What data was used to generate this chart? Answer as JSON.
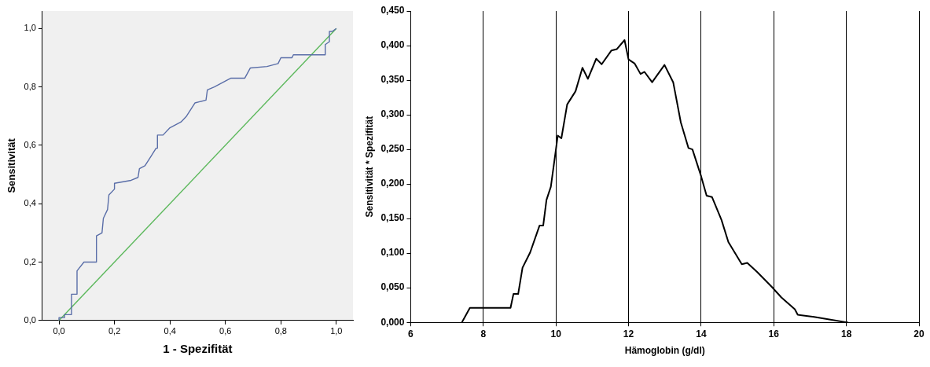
{
  "chart_data": [
    {
      "type": "line",
      "xlabel": "1 - Spezifität",
      "ylabel": "Sensitivität",
      "xlim": [
        -0.06,
        1.06
      ],
      "ylim": [
        0,
        1.06
      ],
      "xticks": [
        {
          "value": 0,
          "label": "0,0"
        },
        {
          "value": 0.2,
          "label": "0,2"
        },
        {
          "value": 0.4,
          "label": "0,4"
        },
        {
          "value": 0.6,
          "label": "0,6"
        },
        {
          "value": 0.8,
          "label": "0,8"
        },
        {
          "value": 1,
          "label": "1,0"
        }
      ],
      "yticks": [
        {
          "value": 0,
          "label": "0,0"
        },
        {
          "value": 0.2,
          "label": "0,2"
        },
        {
          "value": 0.4,
          "label": "0,4"
        },
        {
          "value": 0.6,
          "label": "0,6"
        },
        {
          "value": 0.8,
          "label": "0,8"
        },
        {
          "value": 1,
          "label": "1,0"
        }
      ],
      "grid": false,
      "legend": false,
      "marker": "none",
      "line_style": "solid",
      "series": [
        {
          "color": "#5a6ea8",
          "x": [
            0,
            0,
            0.02,
            0.02,
            0.045,
            0.045,
            0.065,
            0.065,
            0.09,
            0.135,
            0.135,
            0.155,
            0.16,
            0.175,
            0.18,
            0.2,
            0.2,
            0.26,
            0.285,
            0.29,
            0.31,
            0.33,
            0.35,
            0.355,
            0.355,
            0.375,
            0.4,
            0.44,
            0.46,
            0.49,
            0.53,
            0.535,
            0.56,
            0.62,
            0.67,
            0.69,
            0.75,
            0.79,
            0.8,
            0.84,
            0.845,
            0.96,
            0.96,
            0.975,
            0.975,
            0.985,
            1
          ],
          "values": [
            0,
            0.01,
            0.01,
            0.02,
            0.02,
            0.09,
            0.09,
            0.17,
            0.2,
            0.2,
            0.29,
            0.3,
            0.35,
            0.38,
            0.43,
            0.45,
            0.47,
            0.48,
            0.49,
            0.52,
            0.53,
            0.56,
            0.59,
            0.59,
            0.635,
            0.635,
            0.66,
            0.68,
            0.7,
            0.745,
            0.755,
            0.79,
            0.8,
            0.83,
            0.83,
            0.865,
            0.87,
            0.88,
            0.9,
            0.9,
            0.91,
            0.91,
            0.945,
            0.955,
            0.99,
            0.99,
            1
          ]
        },
        {
          "color": "#5cb85c",
          "x": [
            0,
            1
          ],
          "values": [
            0,
            1
          ]
        }
      ]
    },
    {
      "type": "line",
      "xlabel": "Hämoglobin (g/dl)",
      "ylabel": "Sensitivität * Spezifität",
      "xlim": [
        6,
        20
      ],
      "ylim": [
        0,
        0.45
      ],
      "xticks": [
        6,
        8,
        10,
        12,
        14,
        16,
        18,
        20
      ],
      "yticks": [
        {
          "value": 0,
          "label": "0,000"
        },
        {
          "value": 0.05,
          "label": "0,050"
        },
        {
          "value": 0.1,
          "label": "0,100"
        },
        {
          "value": 0.15,
          "label": "0,150"
        },
        {
          "value": 0.2,
          "label": "0,200"
        },
        {
          "value": 0.25,
          "label": "0,250"
        },
        {
          "value": 0.3,
          "label": "0,300"
        },
        {
          "value": 0.35,
          "label": "0,350"
        },
        {
          "value": 0.4,
          "label": "0,400"
        },
        {
          "value": 0.45,
          "label": "0,450"
        }
      ],
      "grid": "x",
      "legend": false,
      "marker": "none",
      "line_style": "solid",
      "series": [
        {
          "color": "#000000",
          "x": [
            7.41,
            7.63,
            8.75,
            8.83,
            8.96,
            9.08,
            9.29,
            9.55,
            9.65,
            9.74,
            9.86,
            10.0,
            10.05,
            10.15,
            10.31,
            10.54,
            10.73,
            10.88,
            11.11,
            11.26,
            11.53,
            11.68,
            11.89,
            12.0,
            12.17,
            12.33,
            12.44,
            12.65,
            12.99,
            13.23,
            13.44,
            13.65,
            13.76,
            14.0,
            14.15,
            14.3,
            14.56,
            14.75,
            15.12,
            15.27,
            15.54,
            15.95,
            16.21,
            16.58,
            16.66,
            17.11,
            18.01,
            18.05
          ],
          "values": [
            0,
            0.021,
            0.021,
            0.041,
            0.041,
            0.079,
            0.101,
            0.14,
            0.14,
            0.177,
            0.196,
            0.25,
            0.27,
            0.266,
            0.315,
            0.334,
            0.368,
            0.352,
            0.381,
            0.373,
            0.393,
            0.395,
            0.408,
            0.38,
            0.374,
            0.359,
            0.362,
            0.347,
            0.372,
            0.347,
            0.289,
            0.252,
            0.25,
            0.211,
            0.183,
            0.181,
            0.148,
            0.116,
            0.084,
            0.086,
            0.073,
            0.051,
            0.036,
            0.019,
            0.011,
            0.008,
            0,
            0
          ]
        }
      ]
    }
  ]
}
